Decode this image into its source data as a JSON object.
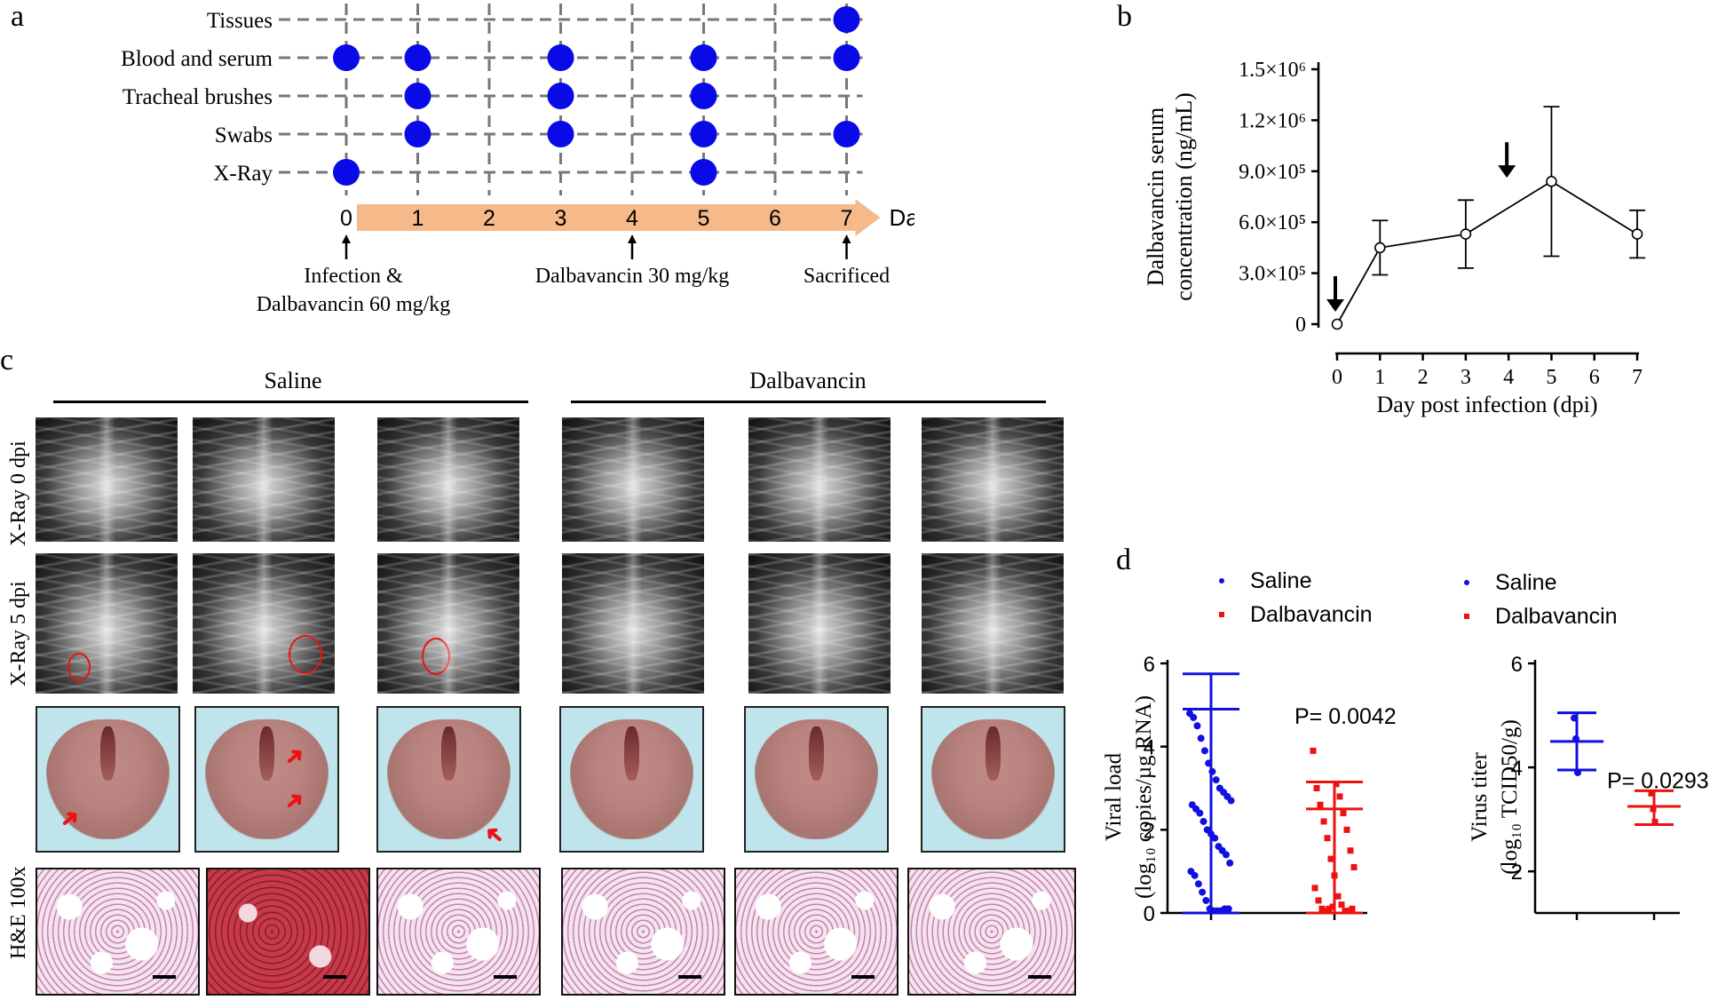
{
  "panels": {
    "a": {
      "letter": "a",
      "rows": [
        "Tissues",
        "Blood and serum",
        "Tracheal brushes",
        "Swabs",
        "X-Ray"
      ],
      "days": [
        "0",
        "1",
        "2",
        "3",
        "4",
        "5",
        "6",
        "7"
      ],
      "days_label": "Days",
      "sampling": {
        "Tissues": [
          7
        ],
        "Blood and serum": [
          0,
          1,
          3,
          5,
          7
        ],
        "Tracheal brushes": [
          1,
          3,
          5
        ],
        "Swabs": [
          1,
          3,
          5,
          7
        ],
        "X-Ray": [
          0,
          5
        ]
      },
      "annotations": [
        {
          "day": 0,
          "lines": [
            "Infection &",
            "Dalbavancin 60 mg/kg"
          ]
        },
        {
          "day": 4,
          "lines": [
            "Dalbavancin 30 mg/kg"
          ]
        },
        {
          "day": 7,
          "lines": [
            "Sacrificed"
          ]
        }
      ],
      "dot_color": "#0a0ae6",
      "arrow_color": "#f5b98a"
    },
    "b": {
      "letter": "b",
      "chart_data": {
        "type": "line",
        "x": [
          0,
          1,
          3,
          5,
          7
        ],
        "values": [
          0,
          450000,
          530000,
          840000,
          530000
        ],
        "errors": [
          0,
          160000,
          200000,
          440000,
          140000
        ],
        "xticks": [
          "0",
          "1",
          "2",
          "3",
          "4",
          "5",
          "6",
          "7"
        ],
        "yticks": [
          "0",
          "3.0×10⁵",
          "6.0×10⁵",
          "9.0×10⁵",
          "1.2×10⁶",
          "1.5×10⁶"
        ],
        "ytick_values": [
          0,
          300000,
          600000,
          900000,
          1200000,
          1500000
        ],
        "ylim": [
          0,
          1500000
        ],
        "xlim": [
          0,
          7
        ],
        "xlabel": "Day post infection (dpi)",
        "ylabel_line1": "Dalbavancin serum",
        "ylabel_line2": "concentration (ng/mL)",
        "dose_arrows_at_day": [
          0,
          4
        ]
      }
    },
    "c": {
      "letter": "c",
      "group_saline": "Saline",
      "group_dalba": "Dalbavancin",
      "row_labels": [
        "X-Ray 0 dpi",
        "X-Ray 5 dpi",
        "H&E 100x"
      ]
    },
    "d": {
      "letter": "d",
      "legend": {
        "saline": "Saline",
        "dalba": "Dalbavancin"
      },
      "colors": {
        "saline": "#1010e0",
        "dalba": "#ee1111"
      },
      "chart_data": [
        {
          "type": "scatter",
          "ylabel_line1": "Viral load",
          "ylabel_line2": "(log₁₀ copies/µg RNA)",
          "yticks": [
            "0",
            "2",
            "4",
            "6"
          ],
          "ytick_values": [
            0,
            2,
            4,
            6
          ],
          "ylim": [
            0,
            6
          ],
          "p_value": "P= 0.0042",
          "series": [
            {
              "name": "Saline",
              "mean": 4.9,
              "upper": 5.75,
              "lower": 0,
              "values": [
                4.8,
                4.7,
                4.5,
                4.2,
                3.9,
                3.6,
                3.4,
                3.2,
                3.0,
                2.9,
                2.8,
                2.7,
                2.6,
                2.5,
                2.4,
                2.2,
                2.0,
                1.9,
                1.8,
                1.6,
                1.5,
                1.4,
                1.2,
                1.0,
                0.9,
                0.7,
                0.5,
                0.3,
                0.1,
                0.05,
                0.05,
                0.05,
                0.1,
                0.1
              ]
            },
            {
              "name": "Dalbavancin",
              "mean": 2.5,
              "upper": 3.15,
              "lower": 0,
              "values": [
                3.9,
                3.1,
                3.0,
                2.8,
                2.6,
                2.4,
                2.2,
                2.0,
                1.8,
                1.5,
                1.3,
                1.1,
                0.9,
                0.6,
                0.4,
                0.3,
                0.2,
                0.1,
                0.05,
                0.05,
                0.05,
                0.1,
                0.1,
                0.15
              ]
            }
          ]
        },
        {
          "type": "scatter",
          "ylabel_line1": "Virus titer",
          "ylabel_line2": "(log₁₀ TCID50/g)",
          "yticks": [
            "2",
            "4",
            "6"
          ],
          "ytick_values": [
            2,
            4,
            6
          ],
          "ylim": [
            1.2,
            6
          ],
          "p_value": "P= 0.0293",
          "series": [
            {
              "name": "Saline",
              "mean": 4.5,
              "upper": 5.05,
              "lower": 3.95,
              "values": [
                4.95,
                4.55,
                3.9
              ]
            },
            {
              "name": "Dalbavancin",
              "mean": 3.25,
              "upper": 3.55,
              "lower": 2.9,
              "values": [
                3.5,
                3.2,
                2.95
              ]
            }
          ]
        }
      ]
    }
  }
}
